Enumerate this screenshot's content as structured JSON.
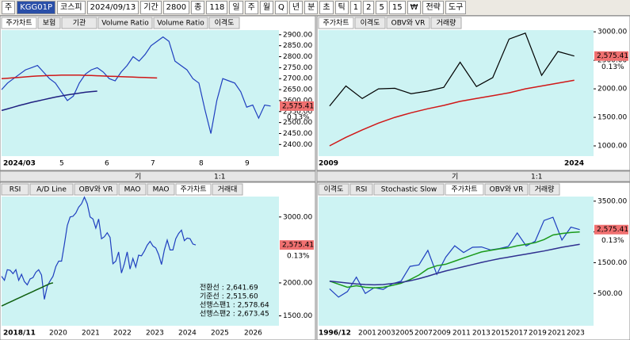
{
  "toolbar": {
    "items": [
      "주",
      "KGG01P",
      "코스피",
      "2024/09/13",
      "기간",
      "2800",
      "종",
      "118",
      "일",
      "주",
      "월",
      "Q",
      "년",
      "분",
      "초",
      "틱",
      "1",
      "2",
      "5",
      "15",
      "₩",
      "전략",
      "도구"
    ]
  },
  "panels": [
    {
      "tabs": [
        "주가차트",
        "보험",
        "기관",
        "Volume Ratio",
        "Volume Ratio",
        "이격도"
      ],
      "ylim": [
        2347,
        2921
      ],
      "yticks": [
        {
          "value": 2900,
          "label": "2900.00"
        },
        {
          "value": 2850,
          "label": "2850.00"
        },
        {
          "value": 2800,
          "label": "2800.00"
        },
        {
          "value": 2750,
          "label": "2750.00"
        },
        {
          "value": 2700,
          "label": "2700.00"
        },
        {
          "value": 2650,
          "label": "2650.00"
        },
        {
          "value": 2600,
          "label": "2600.00"
        },
        {
          "value": 2550,
          "label": "2550.00"
        },
        {
          "value": 2500,
          "label": "2500.00"
        },
        {
          "value": 2450,
          "label": "2450.00"
        },
        {
          "value": 2400,
          "label": "2400.00"
        }
      ],
      "xlabels": [
        "2024/03",
        "5",
        "6",
        "7",
        "8",
        "9"
      ],
      "price_label": "2,575.41",
      "change_label": "0.13%",
      "series": [
        {
          "color": "#1f3fbf",
          "values": [
            2650,
            2680,
            2700,
            2720,
            2740,
            2750,
            2760,
            2730,
            2700,
            2680,
            2640,
            2600,
            2620,
            2680,
            2720,
            2740,
            2750,
            2730,
            2700,
            2690,
            2730,
            2760,
            2800,
            2780,
            2810,
            2850,
            2870,
            2890,
            2870,
            2780,
            2760,
            2740,
            2700,
            2680,
            2560,
            2450,
            2600,
            2700,
            2690,
            2680,
            2640,
            2570,
            2580,
            2520,
            2580,
            2575
          ]
        },
        {
          "color": "#d01818",
          "values": [
            2700,
            2702,
            2704,
            2706,
            2708,
            2710,
            2712,
            2713,
            2714,
            2715,
            2716,
            2716,
            2716,
            2716,
            2715,
            2714,
            2713,
            2712,
            2711,
            2710,
            2709,
            2708,
            2707,
            2706,
            2705,
            2704,
            2703
          ]
        },
        {
          "color": "#202080",
          "values": [
            2555,
            2562,
            2570,
            2578,
            2585,
            2592,
            2598,
            2604,
            2610,
            2616,
            2621,
            2626,
            2630,
            2634,
            2638,
            2641,
            2643
          ]
        }
      ],
      "notes": []
    },
    {
      "tabs": [
        "주가차트",
        "이격도",
        "OBV와 VR",
        "거래량"
      ],
      "ylim": [
        820,
        3030
      ],
      "yticks": [
        {
          "value": 3000,
          "label": "3000.00"
        },
        {
          "value": 2500,
          "label": "2500.00"
        },
        {
          "value": 2000,
          "label": "2000.00"
        },
        {
          "value": 1500,
          "label": "1500.00"
        },
        {
          "value": 1000,
          "label": "1000.00"
        }
      ],
      "xlabels": [
        "2009",
        "2024"
      ],
      "price_label": "2,575.41",
      "change_label": "0.13%",
      "series": [
        {
          "color": "#000000",
          "values": [
            1700,
            2050,
            1830,
            2000,
            2010,
            1915,
            1960,
            2026,
            2467,
            2041,
            2197,
            2873,
            2977,
            2236,
            2655,
            2575
          ]
        },
        {
          "color": "#d01818",
          "values": [
            1000,
            1150,
            1280,
            1400,
            1500,
            1580,
            1650,
            1710,
            1780,
            1830,
            1880,
            1930,
            2000,
            2050,
            2100,
            2150
          ]
        }
      ],
      "notes": []
    },
    {
      "tabs": [
        "RSI",
        "A/D Line",
        "OBV와 VR",
        "MAO",
        "MAO",
        "주가차트",
        "거래대"
      ],
      "ylim": [
        1350,
        3310
      ],
      "yticks": [
        {
          "value": 3000,
          "label": "3000.00"
        },
        {
          "value": 2000,
          "label": "2000.00"
        },
        {
          "value": 1500,
          "label": "1500.00"
        }
      ],
      "xlabels": [
        "2018/11",
        "2020",
        "2021",
        "2022",
        "2023",
        "2024",
        "2025",
        "2026"
      ],
      "price_label": "2,575.41",
      "change_label": "0.13%",
      "series": [
        {
          "color": "#1f3fbf",
          "values": [
            2100,
            2040,
            2200,
            2190,
            2140,
            2200,
            2040,
            2130,
            2020,
            1970,
            2060,
            2080,
            2160,
            2200,
            2120,
            1750,
            1950,
            2030,
            2100,
            2250,
            2330,
            2330,
            2590,
            2870,
            3000,
            3010,
            3060,
            3150,
            3200,
            3300,
            3200,
            3000,
            2970,
            2830,
            2970,
            2670,
            2700,
            2760,
            2690,
            2290,
            2330,
            2470,
            2150,
            2290,
            2470,
            2210,
            2370,
            2240,
            2420,
            2410,
            2480,
            2570,
            2630,
            2560,
            2530,
            2430,
            2280,
            2500,
            2650,
            2500,
            2500,
            2670,
            2750,
            2800,
            2640,
            2680,
            2670,
            2590,
            2575
          ]
        },
        {
          "color": "#106010",
          "values": [
            1650,
            1670,
            1690,
            1710,
            1730,
            1750,
            1770,
            1790,
            1810,
            1830,
            1850,
            1870,
            1890,
            1910,
            1930,
            1950,
            1970,
            1990,
            2000
          ]
        }
      ],
      "notes": [
        "전환선 : 2,641.69",
        "기준선 : 2,515.60",
        "선행스팬1 : 2,578.64",
        "선행스팬2 : 2,673.45"
      ]
    },
    {
      "tabs": [
        "이격도",
        "RSI",
        "Stochastic Slow",
        "주가차트",
        "OBV와 VR",
        "거래량"
      ],
      "ylim": [
        -550,
        3650
      ],
      "yticks": [
        {
          "value": 3500,
          "label": "3500.00"
        },
        {
          "value": 2500,
          "label": "2500.00"
        },
        {
          "value": 1500,
          "label": "1500.00"
        },
        {
          "value": 500,
          "label": "500.00"
        }
      ],
      "xlabels": [
        "1996/12",
        "2001",
        "2003",
        "2005",
        "2007",
        "2009",
        "2011",
        "2013",
        "2015",
        "2017",
        "2019",
        "2021",
        "2023"
      ],
      "price_label": "2,575.41",
      "change_label": "0.13%",
      "series": [
        {
          "color": "#1f3fbf",
          "values": [
            650,
            380,
            560,
            1030,
            500,
            690,
            630,
            810,
            900,
            1380,
            1430,
            1900,
            1120,
            1680,
            2050,
            1830,
            2000,
            2010,
            1915,
            1960,
            2026,
            2467,
            2041,
            2197,
            2873,
            2977,
            2236,
            2655,
            2575
          ]
        },
        {
          "color": "#1a9a1a",
          "values": [
            900,
            800,
            700,
            750,
            700,
            680,
            700,
            760,
            830,
            950,
            1100,
            1300,
            1400,
            1450,
            1550,
            1650,
            1750,
            1850,
            1900,
            1950,
            1980,
            2050,
            2100,
            2150,
            2250,
            2400,
            2450,
            2480,
            2500
          ]
        },
        {
          "color": "#303090",
          "values": [
            900,
            870,
            840,
            810,
            790,
            780,
            790,
            820,
            860,
            910,
            980,
            1060,
            1150,
            1230,
            1300,
            1370,
            1440,
            1510,
            1570,
            1630,
            1680,
            1730,
            1780,
            1830,
            1880,
            1940,
            2000,
            2050,
            2100
          ]
        }
      ],
      "notes": []
    }
  ],
  "scrollbars": [
    {
      "items": [
        "기",
        "1:1"
      ]
    },
    {
      "items": [
        "기",
        "1:1"
      ]
    }
  ]
}
